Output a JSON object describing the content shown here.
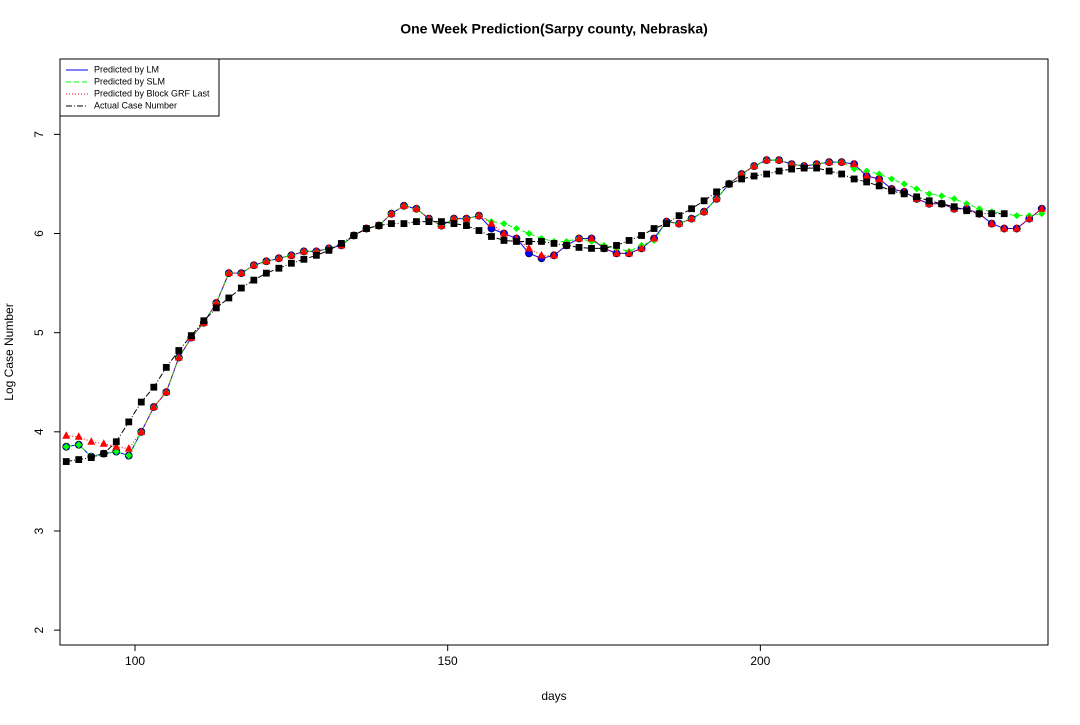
{
  "chart_data": {
    "type": "line",
    "title": "One Week Prediction(Sarpy county, Nebraska)",
    "x_label": "days",
    "y_label": "Log Case Number",
    "xlim": [
      88,
      246
    ],
    "ylim": [
      1.85,
      7.76
    ],
    "xticks": [
      100,
      150,
      200
    ],
    "yticks": [
      2,
      3,
      4,
      5,
      6,
      7
    ],
    "legend": "top-left",
    "x": [
      89,
      91,
      93,
      95,
      97,
      99,
      101,
      103,
      105,
      107,
      109,
      111,
      113,
      115,
      117,
      119,
      121,
      123,
      125,
      127,
      129,
      131,
      133,
      135,
      137,
      139,
      141,
      143,
      145,
      147,
      149,
      151,
      153,
      155,
      157,
      159,
      161,
      163,
      165,
      167,
      169,
      171,
      173,
      175,
      177,
      179,
      181,
      183,
      185,
      187,
      189,
      191,
      193,
      195,
      197,
      199,
      201,
      203,
      205,
      207,
      209,
      211,
      213,
      215,
      217,
      219,
      221,
      223,
      225,
      227,
      229,
      231,
      233,
      235,
      237,
      239,
      241,
      243,
      245
    ],
    "series": [
      {
        "name": "Predicted by LM",
        "color": "#0000ff",
        "marker": "circle",
        "dash": "solid",
        "values": [
          3.85,
          3.87,
          3.75,
          3.78,
          3.8,
          3.76,
          4.0,
          4.25,
          4.4,
          4.75,
          4.95,
          5.1,
          5.3,
          5.6,
          5.6,
          5.68,
          5.72,
          5.75,
          5.78,
          5.82,
          5.82,
          5.85,
          5.88,
          5.98,
          6.05,
          6.08,
          6.2,
          6.28,
          6.25,
          6.15,
          6.08,
          6.15,
          6.15,
          6.18,
          6.05,
          6.0,
          5.95,
          5.8,
          5.75,
          5.78,
          5.88,
          5.95,
          5.95,
          5.85,
          5.8,
          5.8,
          5.85,
          5.95,
          6.12,
          6.1,
          6.15,
          6.22,
          6.35,
          6.5,
          6.6,
          6.68,
          6.74,
          6.74,
          6.7,
          6.68,
          6.7,
          6.72,
          6.72,
          6.7,
          6.58,
          6.55,
          6.45,
          6.42,
          6.35,
          6.3,
          6.3,
          6.25,
          6.25,
          6.2,
          6.1,
          6.05,
          6.05,
          6.15,
          6.25
        ]
      },
      {
        "name": "Predicted by SLM",
        "color": "#00ff00",
        "marker": "diamond",
        "dash": "dashed",
        "values": [
          3.85,
          3.87,
          3.75,
          3.78,
          3.8,
          3.76,
          4.0,
          4.25,
          4.4,
          4.75,
          4.95,
          5.1,
          5.3,
          5.6,
          5.6,
          5.68,
          5.72,
          5.75,
          5.78,
          5.82,
          5.82,
          5.85,
          5.88,
          5.98,
          6.05,
          6.08,
          6.2,
          6.28,
          6.25,
          6.15,
          6.08,
          6.15,
          6.15,
          6.18,
          6.12,
          6.1,
          6.05,
          6.0,
          5.95,
          5.92,
          5.92,
          5.95,
          5.92,
          5.88,
          5.85,
          5.82,
          5.88,
          5.93,
          6.12,
          6.1,
          6.15,
          6.22,
          6.35,
          6.5,
          6.6,
          6.68,
          6.74,
          6.74,
          6.7,
          6.68,
          6.7,
          6.72,
          6.72,
          6.65,
          6.63,
          6.6,
          6.55,
          6.5,
          6.45,
          6.4,
          6.38,
          6.35,
          6.3,
          6.25,
          6.22,
          6.2,
          6.18,
          6.18,
          6.2
        ]
      },
      {
        "name": "Predicted by Block GRF Last",
        "color": "#ff0000",
        "marker": "triangle",
        "dash": "dotted",
        "values": [
          3.96,
          3.95,
          3.9,
          3.88,
          3.85,
          3.83,
          4.0,
          4.25,
          4.4,
          4.75,
          4.95,
          5.1,
          5.3,
          5.6,
          5.6,
          5.68,
          5.72,
          5.75,
          5.78,
          5.82,
          5.82,
          5.85,
          5.88,
          5.98,
          6.05,
          6.08,
          6.2,
          6.28,
          6.25,
          6.15,
          6.08,
          6.15,
          6.15,
          6.18,
          6.1,
          6.0,
          5.95,
          5.85,
          5.78,
          5.78,
          5.88,
          5.95,
          5.95,
          5.85,
          5.8,
          5.8,
          5.85,
          5.95,
          6.12,
          6.1,
          6.15,
          6.22,
          6.35,
          6.5,
          6.6,
          6.68,
          6.74,
          6.74,
          6.7,
          6.68,
          6.7,
          6.72,
          6.72,
          6.7,
          6.58,
          6.55,
          6.45,
          6.42,
          6.35,
          6.3,
          6.3,
          6.25,
          6.25,
          6.2,
          6.1,
          6.05,
          6.05,
          6.15,
          6.25
        ]
      },
      {
        "name": "Actual Case Number",
        "color": "#000000",
        "marker": "square",
        "dash": "dashdot",
        "values": [
          3.7,
          3.72,
          3.74,
          3.78,
          3.9,
          4.1,
          4.3,
          4.45,
          4.65,
          4.82,
          4.97,
          5.12,
          5.25,
          5.35,
          5.45,
          5.53,
          5.6,
          5.65,
          5.7,
          5.74,
          5.78,
          5.83,
          5.9,
          5.98,
          6.05,
          6.08,
          6.1,
          6.1,
          6.12,
          6.12,
          6.12,
          6.1,
          6.08,
          6.03,
          5.97,
          5.93,
          5.92,
          5.92,
          5.92,
          5.9,
          5.88,
          5.86,
          5.85,
          5.85,
          5.88,
          5.93,
          5.98,
          6.05,
          6.1,
          6.18,
          6.25,
          6.33,
          6.42,
          6.5,
          6.55,
          6.58,
          6.6,
          6.63,
          6.65,
          6.66,
          6.66,
          6.63,
          6.6,
          6.55,
          6.52,
          6.48,
          6.43,
          6.4,
          6.37,
          6.33,
          6.3,
          6.27,
          6.23,
          6.2,
          6.2,
          6.2,
          null,
          null,
          null
        ]
      }
    ]
  }
}
